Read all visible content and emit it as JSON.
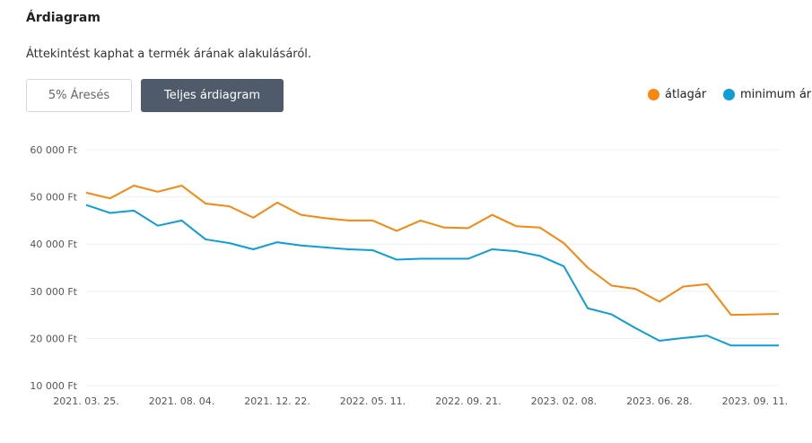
{
  "header": {
    "title": "Árdiagram",
    "subtitle": "Áttekintést kaphat a termék árának alakulásáról."
  },
  "buttons": {
    "discount": "5% Áresés",
    "full": "Teljes árdiagram"
  },
  "chart_data": {
    "type": "line",
    "ylim": [
      10000,
      60000
    ],
    "yticks": [
      {
        "v": 60000,
        "label": "60 000 Ft"
      },
      {
        "v": 50000,
        "label": "50 000 Ft"
      },
      {
        "v": 40000,
        "label": "40 000 Ft"
      },
      {
        "v": 30000,
        "label": "30 000 Ft"
      },
      {
        "v": 20000,
        "label": "20 000 Ft"
      },
      {
        "v": 10000,
        "label": "10 000 Ft"
      }
    ],
    "xticks": [
      {
        "i": 0,
        "label": "2021. 03. 25."
      },
      {
        "i": 4,
        "label": "2021. 08. 04."
      },
      {
        "i": 8,
        "label": "2021. 12. 22."
      },
      {
        "i": 12,
        "label": "2022. 05. 11."
      },
      {
        "i": 16,
        "label": "2022. 09. 21."
      },
      {
        "i": 20,
        "label": "2023. 02. 08."
      },
      {
        "i": 24,
        "label": "2023. 06. 28."
      },
      {
        "i": 28,
        "label": "2023. 09. 11."
      }
    ],
    "legend_position": "top-right",
    "grid": true,
    "series": [
      {
        "name": "átlagár",
        "color": "#f7870f",
        "values": [
          50900,
          49700,
          52400,
          51100,
          52400,
          48600,
          48000,
          45600,
          48800,
          46200,
          45500,
          45000,
          45000,
          42800,
          45000,
          43500,
          43400,
          46200,
          43800,
          43500,
          40200,
          35000,
          31200,
          30500,
          27800,
          31000,
          31500,
          25000,
          25100,
          25200
        ]
      },
      {
        "name": "minimum ár",
        "color": "#0d9dd9",
        "values": [
          48300,
          46600,
          47100,
          43900,
          45000,
          41000,
          40200,
          38900,
          40400,
          39700,
          39300,
          38900,
          38700,
          36700,
          36900,
          36900,
          36900,
          38900,
          38500,
          37500,
          35300,
          26400,
          25100,
          22200,
          19500,
          20100,
          20600,
          18500,
          18500,
          18500
        ]
      }
    ]
  }
}
